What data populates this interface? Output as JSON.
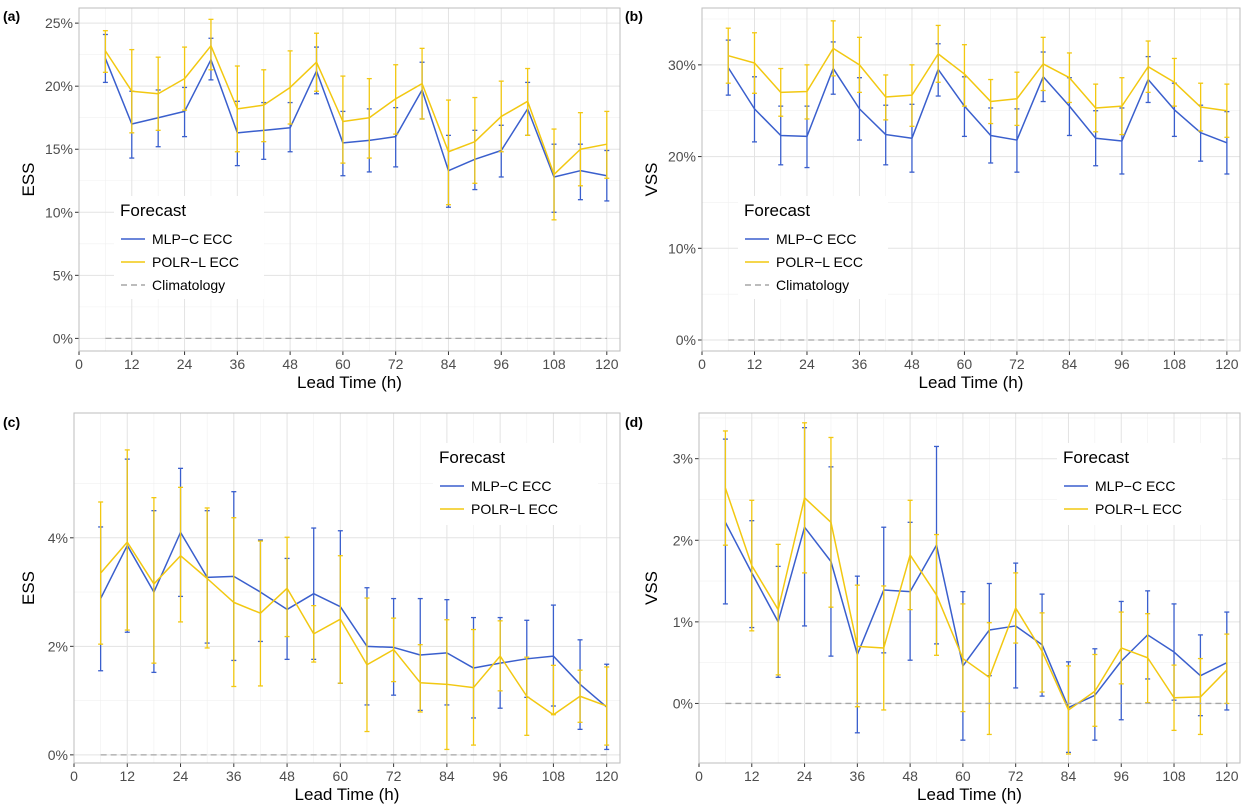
{
  "colors": {
    "mlp": "#3A5FCD",
    "polr": "#F2C811",
    "clim": "#A6A6A6",
    "grid": "#E3E3E3",
    "border": "#BDBDBD",
    "text": "#4D4D4D",
    "label": "#000000"
  },
  "chart_data": [
    {
      "panel_label": "(a)",
      "type": "line",
      "xlabel": "Lead Time (h)",
      "ylabel": "ESS",
      "xlim": [
        0,
        123
      ],
      "ylim": [
        -1,
        26.2
      ],
      "x_ticks": [
        0,
        12,
        24,
        36,
        48,
        60,
        72,
        84,
        96,
        108,
        120
      ],
      "x_tick_labels": [
        "0",
        "12",
        "24",
        "36",
        "48",
        "60",
        "72",
        "84",
        "96",
        "108",
        "120"
      ],
      "y_ticks": [
        0,
        5,
        10,
        15,
        20,
        25
      ],
      "y_tick_labels": [
        "0%",
        "5%",
        "10%",
        "15%",
        "20%",
        "25%"
      ],
      "legend": {
        "title": "Forecast",
        "position": "bottom-left",
        "entries": [
          {
            "label": "MLP−C ECC",
            "series": "mlp"
          },
          {
            "label": "POLR−L ECC",
            "series": "polr"
          },
          {
            "label": "Climatology",
            "series": "clim"
          }
        ]
      },
      "x": [
        6,
        12,
        18,
        24,
        30,
        36,
        42,
        48,
        54,
        60,
        66,
        72,
        78,
        84,
        90,
        96,
        102,
        108,
        114,
        120
      ],
      "series": [
        {
          "key": "mlp",
          "name": "MLP−C ECC",
          "values": [
            22.2,
            17.0,
            17.5,
            18.0,
            22.1,
            16.3,
            16.5,
            16.7,
            21.2,
            15.5,
            15.7,
            16.0,
            19.7,
            13.3,
            14.2,
            14.9,
            18.2,
            12.8,
            13.3,
            12.9
          ],
          "lower": [
            20.3,
            14.3,
            15.2,
            16.0,
            20.5,
            13.7,
            14.2,
            14.8,
            19.4,
            12.9,
            13.2,
            13.6,
            17.4,
            10.4,
            11.8,
            12.8,
            16.1,
            10.0,
            11.0,
            10.9
          ],
          "upper": [
            24.1,
            19.6,
            19.7,
            19.9,
            23.8,
            18.8,
            18.7,
            18.7,
            23.1,
            18.0,
            18.2,
            18.3,
            21.9,
            16.1,
            16.5,
            16.9,
            20.3,
            15.4,
            15.4,
            14.9
          ]
        },
        {
          "key": "polr",
          "name": "POLR−L ECC",
          "values": [
            22.8,
            19.6,
            19.4,
            20.6,
            23.2,
            18.2,
            18.5,
            19.9,
            21.9,
            17.2,
            17.5,
            19.0,
            20.2,
            14.8,
            15.6,
            17.6,
            18.8,
            13.0,
            15.0,
            15.4
          ],
          "lower": [
            21.1,
            16.3,
            16.5,
            18.1,
            21.3,
            14.8,
            15.6,
            17.0,
            19.6,
            13.9,
            14.3,
            16.2,
            17.4,
            10.6,
            12.3,
            14.8,
            16.1,
            9.4,
            12.1,
            12.7
          ],
          "upper": [
            24.4,
            22.9,
            22.3,
            23.1,
            25.3,
            21.6,
            21.3,
            22.8,
            24.2,
            20.8,
            20.6,
            21.7,
            23.0,
            18.9,
            19.1,
            20.4,
            21.4,
            16.6,
            17.9,
            18.0
          ]
        },
        {
          "key": "clim",
          "name": "Climatology",
          "dashed": true,
          "values": [
            0,
            0,
            0,
            0,
            0,
            0,
            0,
            0,
            0,
            0,
            0,
            0,
            0,
            0,
            0,
            0,
            0,
            0,
            0,
            0
          ]
        }
      ]
    },
    {
      "panel_label": "(b)",
      "type": "line",
      "xlabel": "Lead Time (h)",
      "ylabel": "VSS",
      "xlim": [
        0,
        123
      ],
      "ylim": [
        -1.2,
        36.2
      ],
      "x_ticks": [
        0,
        12,
        24,
        36,
        48,
        60,
        72,
        84,
        96,
        108,
        120
      ],
      "x_tick_labels": [
        "0",
        "12",
        "24",
        "36",
        "48",
        "60",
        "72",
        "84",
        "96",
        "108",
        "120"
      ],
      "y_ticks": [
        0,
        10,
        20,
        30
      ],
      "y_tick_labels": [
        "0%",
        "10%",
        "20%",
        "30%"
      ],
      "legend": {
        "title": "Forecast",
        "position": "bottom-left",
        "entries": [
          {
            "label": "MLP−C ECC",
            "series": "mlp"
          },
          {
            "label": "POLR−L ECC",
            "series": "polr"
          },
          {
            "label": "Climatology",
            "series": "clim"
          }
        ]
      },
      "x": [
        6,
        12,
        18,
        24,
        30,
        36,
        42,
        48,
        54,
        60,
        66,
        72,
        78,
        84,
        90,
        96,
        102,
        108,
        114,
        120
      ],
      "series": [
        {
          "key": "mlp",
          "name": "MLP−C ECC",
          "values": [
            29.7,
            25.2,
            22.3,
            22.2,
            29.6,
            25.2,
            22.4,
            22.0,
            29.5,
            25.5,
            22.3,
            21.8,
            28.7,
            25.5,
            22.0,
            21.7,
            28.4,
            25.1,
            22.6,
            21.5
          ],
          "lower": [
            26.7,
            21.6,
            19.1,
            18.8,
            26.8,
            21.8,
            19.1,
            18.3,
            26.6,
            22.2,
            19.3,
            18.3,
            26.0,
            22.3,
            19.0,
            18.1,
            25.9,
            22.2,
            19.5,
            18.1
          ],
          "upper": [
            32.7,
            28.7,
            25.5,
            25.5,
            32.5,
            28.6,
            25.6,
            25.7,
            32.3,
            28.7,
            25.3,
            25.2,
            31.4,
            28.6,
            25.0,
            25.3,
            30.9,
            28.0,
            25.6,
            24.9
          ]
        },
        {
          "key": "polr",
          "name": "POLR−L ECC",
          "values": [
            31.0,
            30.2,
            27.0,
            27.1,
            31.8,
            30.0,
            26.5,
            26.7,
            31.2,
            29.0,
            26.0,
            26.3,
            30.1,
            28.6,
            25.3,
            25.5,
            29.8,
            28.1,
            25.4,
            25.0
          ],
          "lower": [
            28.0,
            26.9,
            24.4,
            24.1,
            28.8,
            27.0,
            24.0,
            23.3,
            28.1,
            25.5,
            23.6,
            23.4,
            27.2,
            25.9,
            22.7,
            22.4,
            27.0,
            25.5,
            22.8,
            22.1
          ],
          "upper": [
            34.0,
            33.5,
            29.6,
            30.0,
            34.8,
            33.0,
            28.9,
            30.0,
            34.3,
            32.2,
            28.4,
            29.2,
            33.0,
            31.3,
            27.9,
            28.6,
            32.6,
            30.7,
            28.0,
            27.9
          ]
        },
        {
          "key": "clim",
          "name": "Climatology",
          "dashed": true,
          "values": [
            0,
            0,
            0,
            0,
            0,
            0,
            0,
            0,
            0,
            0,
            0,
            0,
            0,
            0,
            0,
            0,
            0,
            0,
            0,
            0
          ]
        }
      ]
    },
    {
      "panel_label": "(c)",
      "type": "line",
      "xlabel": "Lead Time (h)",
      "ylabel": "ESS",
      "xlim": [
        0,
        123
      ],
      "ylim": [
        -0.15,
        6.3
      ],
      "x_ticks": [
        0,
        12,
        24,
        36,
        48,
        60,
        72,
        84,
        96,
        108,
        120
      ],
      "x_tick_labels": [
        "0",
        "12",
        "24",
        "36",
        "48",
        "60",
        "72",
        "84",
        "96",
        "108",
        "120"
      ],
      "y_ticks": [
        0,
        2,
        4
      ],
      "y_tick_labels": [
        "0%",
        "2%",
        "4%"
      ],
      "legend": {
        "title": "Forecast",
        "position": "top-right",
        "entries": [
          {
            "label": "MLP−C ECC",
            "series": "mlp"
          },
          {
            "label": "POLR−L ECC",
            "series": "polr"
          }
        ]
      },
      "x": [
        6,
        12,
        18,
        24,
        30,
        36,
        42,
        48,
        54,
        60,
        66,
        72,
        78,
        84,
        90,
        96,
        102,
        108,
        114,
        120
      ],
      "series": [
        {
          "key": "mlp",
          "name": "MLP−C ECC",
          "values": [
            2.88,
            3.86,
            3.0,
            4.1,
            3.27,
            3.29,
            3.0,
            2.68,
            2.97,
            2.73,
            2.0,
            1.98,
            1.84,
            1.88,
            1.6,
            1.69,
            1.77,
            1.82,
            1.3,
            0.88
          ],
          "lower": [
            1.55,
            2.26,
            1.52,
            2.92,
            2.06,
            1.74,
            2.09,
            1.76,
            1.76,
            1.32,
            0.92,
            1.1,
            0.82,
            0.92,
            0.68,
            0.86,
            1.06,
            0.9,
            0.47,
            0.1
          ],
          "upper": [
            4.2,
            5.45,
            4.5,
            5.28,
            4.5,
            4.85,
            3.96,
            3.62,
            4.18,
            4.13,
            3.08,
            2.88,
            2.88,
            2.86,
            2.53,
            2.53,
            2.48,
            2.76,
            2.12,
            1.67
          ]
        },
        {
          "key": "polr",
          "name": "POLR−L ECC",
          "values": [
            3.35,
            3.92,
            3.15,
            3.67,
            3.25,
            2.81,
            2.61,
            3.07,
            2.23,
            2.5,
            1.66,
            1.94,
            1.33,
            1.3,
            1.24,
            1.82,
            1.08,
            0.74,
            1.08,
            0.9
          ],
          "lower": [
            2.04,
            2.3,
            1.69,
            2.45,
            1.97,
            1.26,
            1.27,
            2.18,
            1.71,
            1.32,
            0.43,
            1.35,
            0.79,
            0.1,
            0.18,
            1.18,
            0.36,
            0.74,
            0.6,
            0.18
          ],
          "upper": [
            4.66,
            5.62,
            4.74,
            4.93,
            4.55,
            4.37,
            3.94,
            4.01,
            2.75,
            3.67,
            2.89,
            2.52,
            2.03,
            2.49,
            2.31,
            2.47,
            1.8,
            1.65,
            1.56,
            1.62
          ]
        },
        {
          "key": "clim",
          "name": "Climatology",
          "dashed": true,
          "values": [
            0,
            0,
            0,
            0,
            0,
            0,
            0,
            0,
            0,
            0,
            0,
            0,
            0,
            0,
            0,
            0,
            0,
            0,
            0,
            0
          ]
        }
      ]
    },
    {
      "panel_label": "(d)",
      "type": "line",
      "xlabel": "Lead Time (h)",
      "ylabel": "VSS",
      "xlim": [
        0,
        123
      ],
      "ylim": [
        -0.73,
        3.56
      ],
      "x_ticks": [
        0,
        12,
        24,
        36,
        48,
        60,
        72,
        84,
        96,
        108,
        120
      ],
      "x_tick_labels": [
        "0",
        "12",
        "24",
        "36",
        "48",
        "60",
        "72",
        "84",
        "96",
        "108",
        "120"
      ],
      "y_ticks": [
        0,
        1,
        2,
        3
      ],
      "y_tick_labels": [
        "0%",
        "1%",
        "2%",
        "3%"
      ],
      "legend": {
        "title": "Forecast",
        "position": "top-right",
        "entries": [
          {
            "label": "MLP−C ECC",
            "series": "mlp"
          },
          {
            "label": "POLR−L ECC",
            "series": "polr"
          }
        ]
      },
      "x": [
        6,
        12,
        18,
        24,
        30,
        36,
        42,
        48,
        54,
        60,
        66,
        72,
        78,
        84,
        90,
        96,
        102,
        108,
        114,
        120
      ],
      "series": [
        {
          "key": "mlp",
          "name": "MLP−C ECC",
          "values": [
            2.22,
            1.6,
            1.0,
            2.16,
            1.74,
            0.6,
            1.39,
            1.37,
            1.94,
            0.46,
            0.9,
            0.95,
            0.72,
            -0.05,
            0.1,
            0.52,
            0.84,
            0.63,
            0.34,
            0.5
          ],
          "lower": [
            1.22,
            0.93,
            0.32,
            0.95,
            0.58,
            -0.36,
            0.62,
            0.53,
            0.73,
            -0.45,
            0.34,
            0.19,
            0.09,
            -0.6,
            -0.45,
            -0.2,
            0.3,
            0.04,
            -0.15,
            -0.08
          ],
          "upper": [
            3.24,
            2.24,
            1.68,
            3.38,
            2.9,
            1.56,
            2.16,
            2.22,
            3.15,
            1.37,
            1.47,
            1.72,
            1.34,
            0.51,
            0.67,
            1.25,
            1.38,
            1.22,
            0.84,
            1.12
          ]
        },
        {
          "key": "polr",
          "name": "POLR−L ECC",
          "values": [
            2.64,
            1.69,
            1.15,
            2.52,
            2.22,
            0.7,
            0.68,
            1.82,
            1.33,
            0.55,
            0.32,
            1.17,
            0.64,
            -0.08,
            0.15,
            0.68,
            0.56,
            0.07,
            0.08,
            0.41
          ],
          "lower": [
            1.94,
            0.89,
            0.35,
            1.6,
            1.18,
            -0.04,
            -0.08,
            1.15,
            0.59,
            -0.1,
            -0.38,
            0.74,
            0.14,
            -0.62,
            -0.28,
            0.24,
            0.01,
            -0.33,
            -0.38,
            0.0
          ],
          "upper": [
            3.34,
            2.49,
            1.95,
            3.44,
            3.26,
            1.45,
            1.44,
            2.49,
            2.07,
            1.22,
            0.99,
            1.6,
            1.11,
            0.46,
            0.6,
            1.12,
            1.1,
            0.47,
            0.55,
            0.85
          ]
        },
        {
          "key": "clim",
          "name": "Climatology",
          "dashed": true,
          "values": [
            0,
            0,
            0,
            0,
            0,
            0,
            0,
            0,
            0,
            0,
            0,
            0,
            0,
            0,
            0,
            0,
            0,
            0,
            0,
            0
          ]
        }
      ]
    }
  ]
}
